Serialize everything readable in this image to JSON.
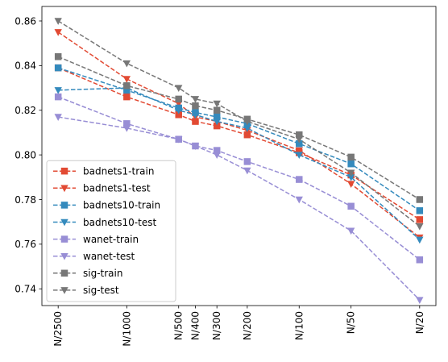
{
  "chart_data": {
    "type": "line",
    "title": "",
    "xlabel": "",
    "ylabel": "",
    "x_scale": "log",
    "categories": [
      "N/2500",
      "N/1000",
      "N/500",
      "N/400",
      "N/300",
      "N/200",
      "N/100",
      "N/50",
      "N/20"
    ],
    "x_ratio": [
      2500,
      1000,
      500,
      400,
      300,
      200,
      100,
      50,
      20
    ],
    "ylim": [
      0.7325,
      0.8665
    ],
    "yticks": [
      0.74,
      0.76,
      0.78,
      0.8,
      0.82,
      0.84,
      0.86
    ],
    "ytick_labels": [
      "0.74",
      "0.76",
      "0.78",
      "0.80",
      "0.82",
      "0.84",
      "0.86"
    ],
    "grid": false,
    "legend_position": "lower-left",
    "series": [
      {
        "name": "badnets1-train",
        "color": "#e24a33",
        "marker": "square",
        "values": [
          0.839,
          0.826,
          0.818,
          0.815,
          0.813,
          0.809,
          0.801,
          0.791,
          0.771
        ]
      },
      {
        "name": "badnets1-test",
        "color": "#e24a33",
        "marker": "triangle-down",
        "values": [
          0.855,
          0.834,
          0.823,
          0.817,
          0.815,
          0.811,
          0.802,
          0.787,
          0.763
        ]
      },
      {
        "name": "badnets10-train",
        "color": "#348abd",
        "marker": "square",
        "values": [
          0.839,
          0.829,
          0.821,
          0.819,
          0.817,
          0.814,
          0.805,
          0.796,
          0.775
        ]
      },
      {
        "name": "badnets10-test",
        "color": "#348abd",
        "marker": "triangle-down",
        "values": [
          0.829,
          0.83,
          0.82,
          0.818,
          0.815,
          0.812,
          0.8,
          0.79,
          0.762
        ]
      },
      {
        "name": "wanet-train",
        "color": "#988ed5",
        "marker": "square",
        "values": [
          0.826,
          0.814,
          0.807,
          0.804,
          0.802,
          0.797,
          0.789,
          0.777,
          0.753
        ]
      },
      {
        "name": "wanet-test",
        "color": "#988ed5",
        "marker": "triangle-down",
        "values": [
          0.817,
          0.812,
          0.807,
          0.804,
          0.8,
          0.793,
          0.78,
          0.766,
          0.735
        ]
      },
      {
        "name": "sig-train",
        "color": "#777777",
        "marker": "square",
        "values": [
          0.844,
          0.831,
          0.825,
          0.822,
          0.82,
          0.816,
          0.809,
          0.799,
          0.78
        ]
      },
      {
        "name": "sig-test",
        "color": "#777777",
        "marker": "triangle-down",
        "values": [
          0.86,
          0.841,
          0.83,
          0.825,
          0.823,
          0.815,
          0.807,
          0.792,
          0.768
        ]
      }
    ]
  }
}
